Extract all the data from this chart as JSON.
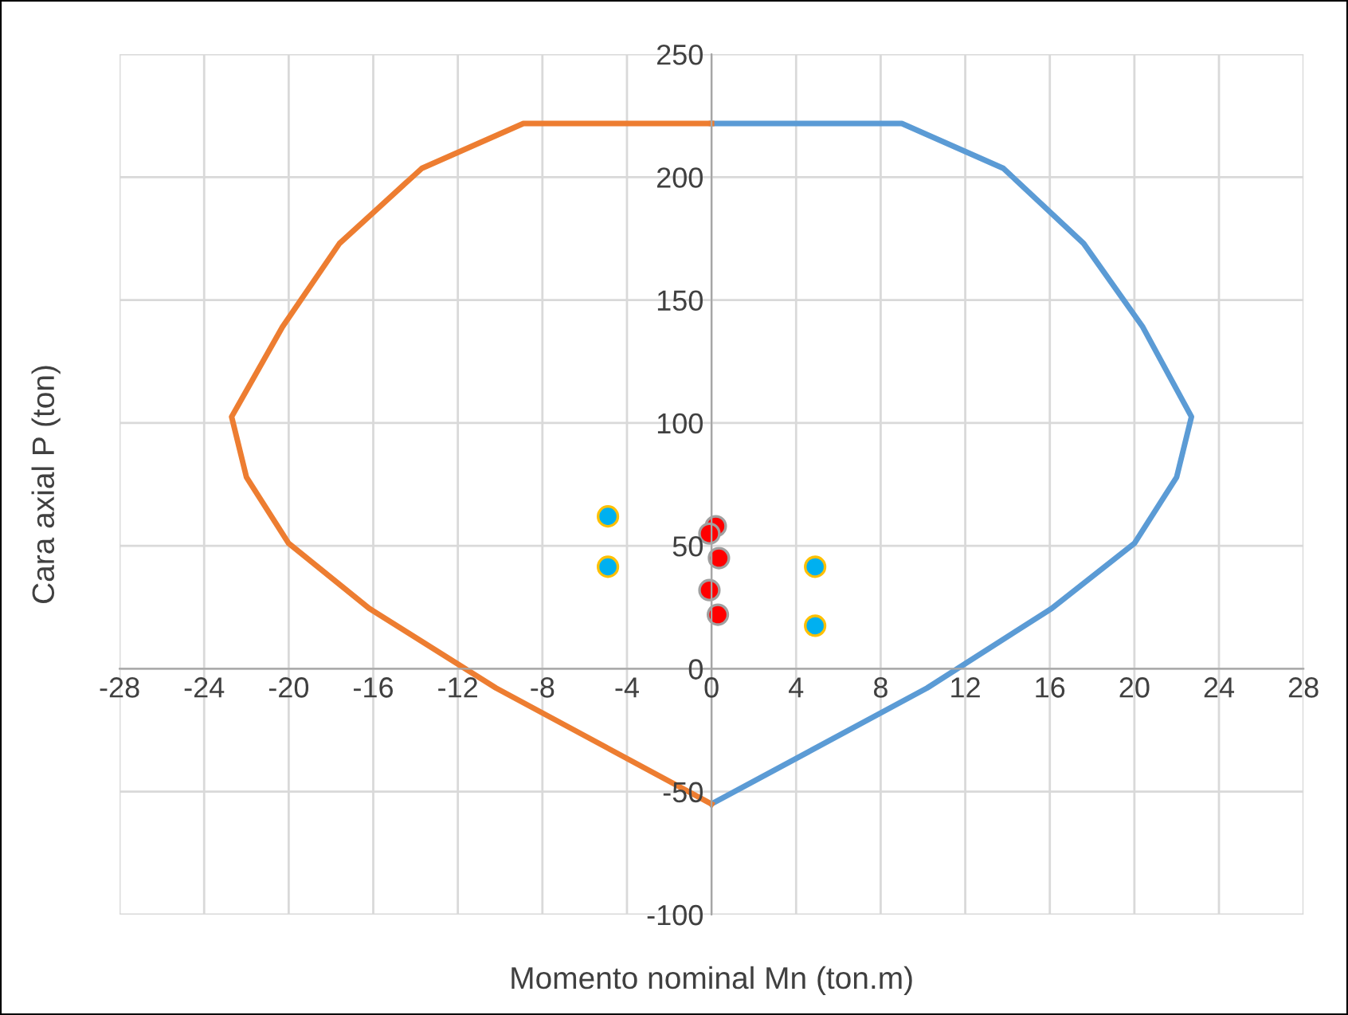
{
  "chart_data": {
    "type": "line",
    "xlabel": "Momento nominal Mn (ton.m)",
    "ylabel": "Cara axial P (ton)",
    "xlim": [
      -28,
      28
    ],
    "xticks": [
      -28,
      -24,
      -20,
      -16,
      -12,
      -8,
      -4,
      0,
      4,
      8,
      12,
      16,
      20,
      24,
      28
    ],
    "ylim": [
      -100,
      250
    ],
    "yticks": [
      -100,
      -50,
      0,
      50,
      100,
      150,
      200,
      250
    ],
    "grid": true,
    "legend": false,
    "series": [
      {
        "color": "#5b9bd5",
        "marker": "none",
        "x": [
          0,
          10.2,
          16.1,
          20,
          22,
          22.7,
          20.4,
          17.6,
          13.8,
          9,
          0
        ],
        "values": [
          -55,
          -7.8,
          24.6,
          51,
          78,
          102.5,
          139,
          173,
          203.6,
          221.8,
          221.8
        ]
      },
      {
        "color": "#ed7d31",
        "marker": "none",
        "x": [
          0,
          -10.2,
          -16.2,
          -20,
          -22,
          -22.7,
          -20.3,
          -17.6,
          -13.7,
          -8.9,
          0
        ],
        "values": [
          -55,
          -7.8,
          24.6,
          51,
          78,
          102.5,
          139,
          173,
          203.6,
          221.8,
          221.8
        ]
      },
      {
        "type": "scatter",
        "color": "#ff0000",
        "marker": "circle",
        "x": [
          0.2,
          -0.1,
          0.35,
          -0.1,
          0.3
        ],
        "values": [
          58,
          55,
          45,
          32,
          22
        ]
      },
      {
        "type": "scatter",
        "color": "#00b0f0",
        "marker": "circle",
        "x": [
          -4.9,
          -4.9,
          4.9,
          4.9
        ],
        "values": [
          62,
          41.5,
          41.5,
          17.5
        ]
      }
    ]
  }
}
